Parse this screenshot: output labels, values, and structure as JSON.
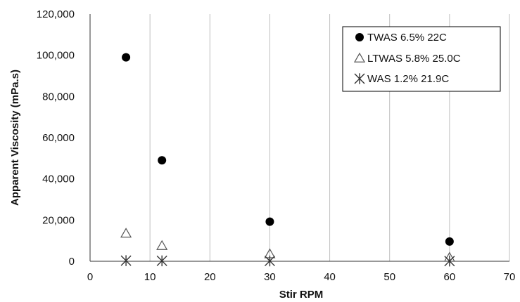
{
  "chart_data": {
    "type": "scatter",
    "title": "",
    "xlabel": "Stir RPM",
    "ylabel": "Apparent Viscosity (mPa.s)",
    "xlim": [
      0,
      70
    ],
    "ylim": [
      0,
      120000
    ],
    "x_ticks": [
      0,
      10,
      20,
      30,
      40,
      50,
      60,
      70
    ],
    "y_ticks": [
      0,
      20000,
      40000,
      60000,
      80000,
      100000,
      120000
    ],
    "x_tick_labels": [
      "0",
      "10",
      "20",
      "30",
      "40",
      "50",
      "60",
      "70"
    ],
    "y_tick_labels": [
      "0",
      "20,000",
      "40,000",
      "60,000",
      "80,000",
      "100,000",
      "120,000"
    ],
    "grid": {
      "horizontal": false,
      "vertical": true
    },
    "legend_position": "top-right",
    "series": [
      {
        "name": "TWAS 6.5% 22C",
        "marker": "filled-circle",
        "color": "#000000",
        "x": [
          6,
          12,
          30,
          60
        ],
        "y": [
          99000,
          49000,
          19200,
          9600
        ]
      },
      {
        "name": "LTWAS 5.8% 25.0C",
        "marker": "open-triangle",
        "color": "#555555",
        "x": [
          6,
          12,
          30,
          60
        ],
        "y": [
          13500,
          7500,
          3500,
          1800
        ]
      },
      {
        "name": "WAS 1.2% 21.9C",
        "marker": "asterisk",
        "color": "#333333",
        "x": [
          6,
          12,
          30,
          60
        ],
        "y": [
          300,
          200,
          150,
          100
        ]
      }
    ]
  }
}
